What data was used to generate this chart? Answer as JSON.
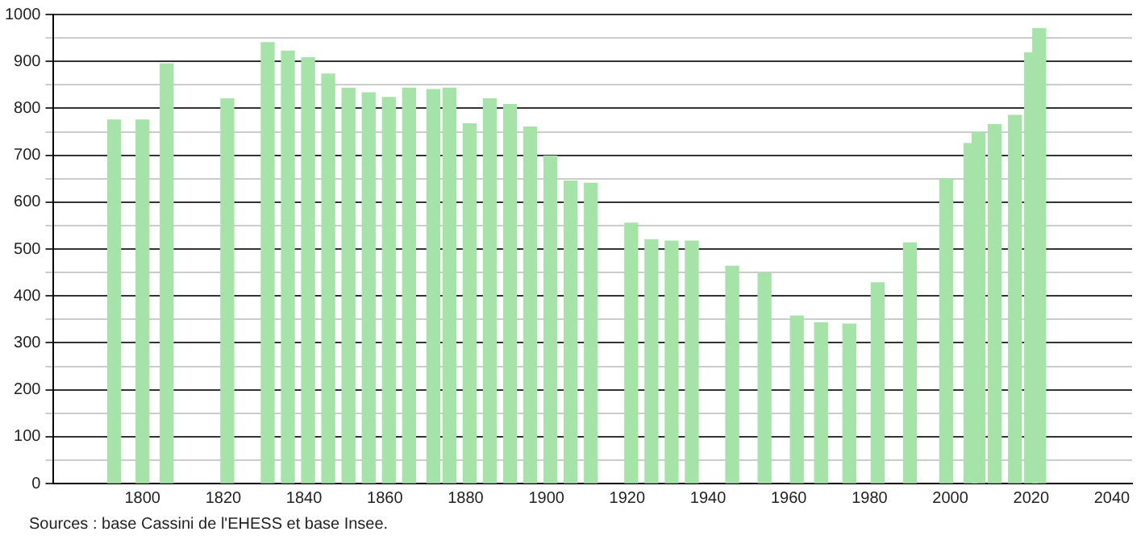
{
  "chart_data": {
    "type": "bar",
    "color": "#a6e3a9",
    "x": [
      1793,
      1800,
      1806,
      1821,
      1831,
      1836,
      1841,
      1846,
      1851,
      1856,
      1861,
      1866,
      1872,
      1876,
      1881,
      1886,
      1891,
      1896,
      1901,
      1906,
      1911,
      1921,
      1926,
      1931,
      1936,
      1946,
      1954,
      1962,
      1968,
      1975,
      1982,
      1990,
      1999,
      2005,
      2007,
      2011,
      2016,
      2020,
      2022
    ],
    "values": [
      775,
      775,
      895,
      820,
      940,
      922,
      908,
      873,
      843,
      833,
      823,
      843,
      840,
      843,
      767,
      820,
      808,
      760,
      698,
      645,
      640,
      555,
      520,
      517,
      517,
      463,
      448,
      357,
      343,
      340,
      428,
      513,
      650,
      725,
      748,
      765,
      785,
      918,
      970
    ],
    "xlim": [
      1778,
      2045
    ],
    "xticks": [
      1800,
      1820,
      1840,
      1860,
      1880,
      1900,
      1920,
      1940,
      1960,
      1980,
      2000,
      2020,
      2040
    ],
    "ylim": [
      0,
      1000
    ],
    "yticks": [
      0,
      {
        "value": 50,
        "label": null
      },
      100,
      {
        "value": 150,
        "label": null
      },
      200,
      {
        "value": 250,
        "label": null
      },
      300,
      {
        "value": 350,
        "label": null
      },
      400,
      {
        "value": 450,
        "label": null
      },
      500,
      {
        "value": 550,
        "label": null
      },
      600,
      {
        "value": 650,
        "label": null
      },
      700,
      {
        "value": 750,
        "label": null
      },
      800,
      {
        "value": 850,
        "label": null
      },
      900,
      {
        "value": 950,
        "label": null
      },
      1000
    ],
    "grid": "y",
    "legend": false,
    "annotations": [
      "Sources : base Cassini de l'EHESS et base Insee."
    ]
  }
}
